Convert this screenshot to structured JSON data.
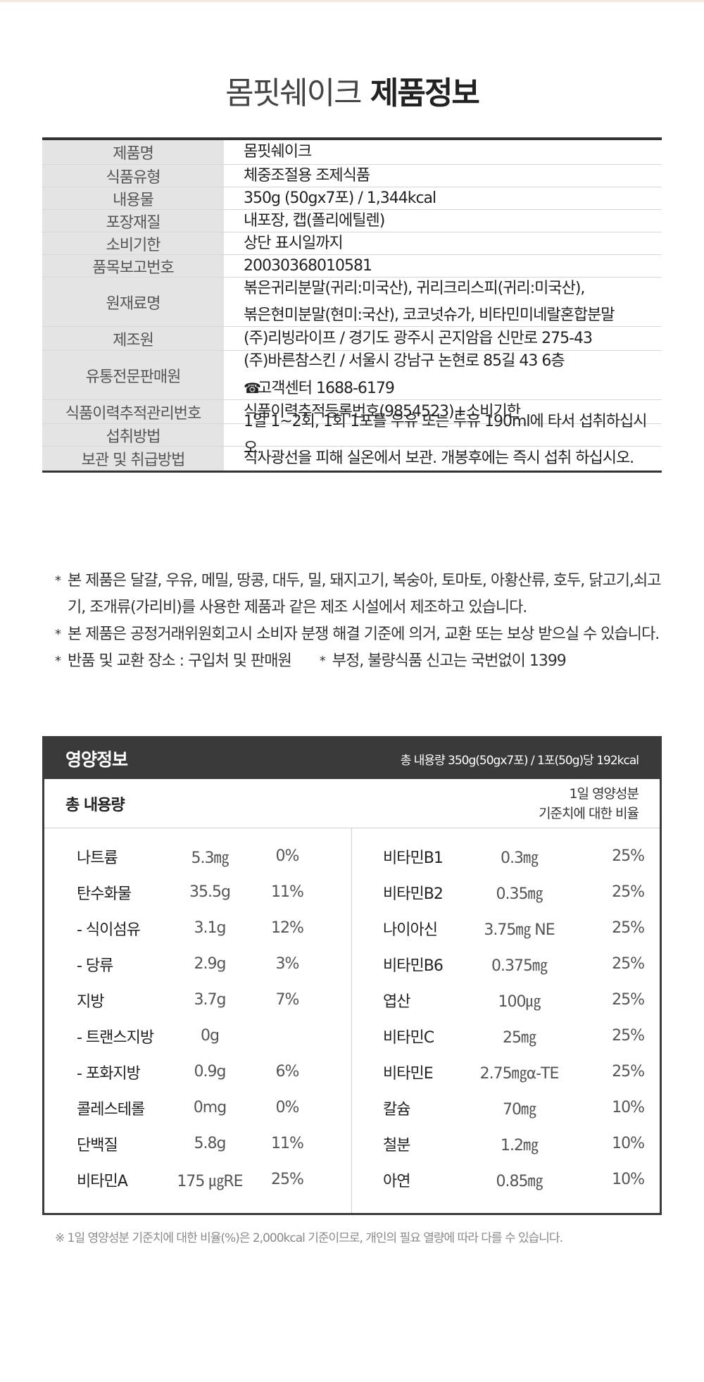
{
  "title": {
    "light": "몸핏쉐이크",
    "bold": "제품정보"
  },
  "info_rows": [
    {
      "label": "제품명",
      "lines": [
        "몸핏쉐이크"
      ]
    },
    {
      "label": "식품유형",
      "lines": [
        "체중조절용 조제식품"
      ]
    },
    {
      "label": "내용물",
      "lines": [
        "350g (50gx7포) / 1,344kcal"
      ]
    },
    {
      "label": "포장재질",
      "lines": [
        "내포장, 캡(폴리에틸렌)"
      ]
    },
    {
      "label": "소비기한",
      "lines": [
        "상단 표시일까지"
      ]
    },
    {
      "label": "품목보고번호",
      "lines": [
        "20030368010581"
      ]
    },
    {
      "label": "원재료명",
      "lines": [
        "볶은귀리분말(귀리:미국산), 귀리크리스피(귀리:미국산),",
        "볶은현미분말(현미:국산), 코코넛슈가, 비타민미네랄혼합분말"
      ]
    },
    {
      "label": "제조원",
      "lines": [
        "(주)리빙라이프 / 경기도 광주시 곤지암읍 신만로 275-43"
      ]
    },
    {
      "label": "유통전문판매원",
      "lines": [
        "(주)바른참스킨 / 서울시 강남구 논현로 85길 43 6층",
        "고객센터 1688-6179"
      ]
    },
    {
      "label": "식품이력추적관리번호",
      "lines": [
        "식품이력추적등록번호(9854523)+소비기한"
      ]
    },
    {
      "label": "섭취방법",
      "lines": [
        "1일 1~2회, 1회 1포를 우유 또는 두유 190ml에 타서 섭취하십시오."
      ]
    },
    {
      "label": "보관 및 취급방법",
      "lines": [
        "직사광선을 피해 실온에서 보관. 개봉후에는 즉시 섭취 하십시오."
      ]
    }
  ],
  "phone_icon": "phone-icon",
  "notes": [
    "본 제품은 달걀, 우유, 메밀, 땅콩, 대두, 밀, 돼지고기, 복숭아, 토마토, 아황산류, 호두, 닭고기,쇠고기, 조개류(가리비)를 사용한 제품과 같은 제조 시설에서 제조하고 있습니다.",
    "본 제품은 공정거래위원회고시 소비자 분쟁 해결 기준에 의거, 교환 또는 보상 받으실 수 있습니다."
  ],
  "notes_pair": [
    "반품 및 교환 장소 : 구입처 및 판매원",
    "부정, 불량식품 신고는 국번없이 1399"
  ],
  "nutrition": {
    "title": "영양정보",
    "summary": "총 내용량 350g(50gx7포) / 1포(50g)당 192kcal",
    "total_label": "총 내용량",
    "ratio_label_1": "1일 영양성분",
    "ratio_label_2": "기준치에 대한 비율",
    "left": [
      {
        "name": "나트륨",
        "amount": "5.3㎎",
        "pct": "0%"
      },
      {
        "name": "탄수화물",
        "amount": "35.5g",
        "pct": "11%"
      },
      {
        "name": "- 식이섬유",
        "amount": "3.1g",
        "pct": "12%"
      },
      {
        "name": "- 당류",
        "amount": "2.9g",
        "pct": "3%"
      },
      {
        "name": "지방",
        "amount": "3.7g",
        "pct": "7%"
      },
      {
        "name": "- 트랜스지방",
        "amount": "0g",
        "pct": ""
      },
      {
        "name": "- 포화지방",
        "amount": "0.9g",
        "pct": "6%"
      },
      {
        "name": "콜레스테롤",
        "amount": "0mg",
        "pct": "0%"
      },
      {
        "name": "단백질",
        "amount": "5.8g",
        "pct": "11%"
      },
      {
        "name": "비타민A",
        "amount": "175 ㎍RE",
        "pct": "25%"
      }
    ],
    "right": [
      {
        "name": "비타민B1",
        "amount": "0.3㎎",
        "pct": "25%"
      },
      {
        "name": "비타민B2",
        "amount": "0.35㎎",
        "pct": "25%"
      },
      {
        "name": "나이아신",
        "amount": "3.75㎎ NE",
        "pct": "25%"
      },
      {
        "name": "비타민B6",
        "amount": "0.375㎎",
        "pct": "25%"
      },
      {
        "name": "엽산",
        "amount": "100㎍",
        "pct": "25%"
      },
      {
        "name": "비타민C",
        "amount": "25㎎",
        "pct": "25%"
      },
      {
        "name": "비타민E",
        "amount": "2.75㎎α-TE",
        "pct": "25%"
      },
      {
        "name": "칼슘",
        "amount": "70㎎",
        "pct": "10%"
      },
      {
        "name": "철분",
        "amount": "1.2㎎",
        "pct": "10%"
      },
      {
        "name": "아연",
        "amount": "0.85㎎",
        "pct": "10%"
      }
    ]
  },
  "footnote": "※ 1일 영양성분 기준치에 대한 비율(%)은 2,000kcal 기준이므로, 개인의 필요 열량에 따라 다를 수 있습니다."
}
